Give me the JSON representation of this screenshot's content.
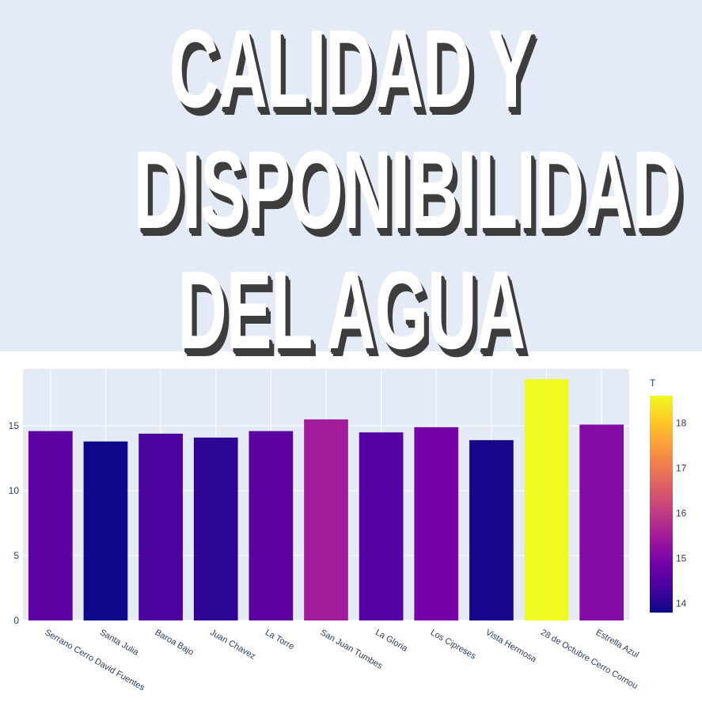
{
  "title_lines": [
    "CALIDAD Y",
    "DISPONIBILIDAD",
    "DEL AGUA"
  ],
  "chart_data": {
    "type": "bar",
    "categories": [
      "Serrano Cerro David Fuentes",
      "Santa Julia",
      "Baroa Bajo",
      "Juan Chavez",
      "La Torre",
      "San Juan Tumbes",
      "La Gloria",
      "Los Cipreses",
      "Vista Hermosa",
      "28 de Octubre Cerro Cornou",
      "Estrella Azul"
    ],
    "values": [
      14.6,
      13.8,
      14.4,
      14.1,
      14.6,
      15.5,
      14.5,
      14.9,
      13.9,
      18.6,
      15.1
    ],
    "ylim": [
      0,
      19.4
    ],
    "yticks": [
      0,
      5,
      10,
      15
    ],
    "colorbar": {
      "title": "T",
      "min": 13.8,
      "max": 18.6,
      "ticks": [
        14,
        15,
        16,
        17,
        18
      ]
    },
    "grid": true,
    "colors": {
      "plot_bg": "#e5ebf6",
      "grid": "#ffffff",
      "text": "#2a3f5f"
    },
    "colorscale": [
      "#0d0887",
      "#46039f",
      "#7201a8",
      "#9c179e",
      "#bd3786",
      "#d8576b",
      "#ed7953",
      "#fb9f3a",
      "#fdca26",
      "#f0f921"
    ]
  }
}
